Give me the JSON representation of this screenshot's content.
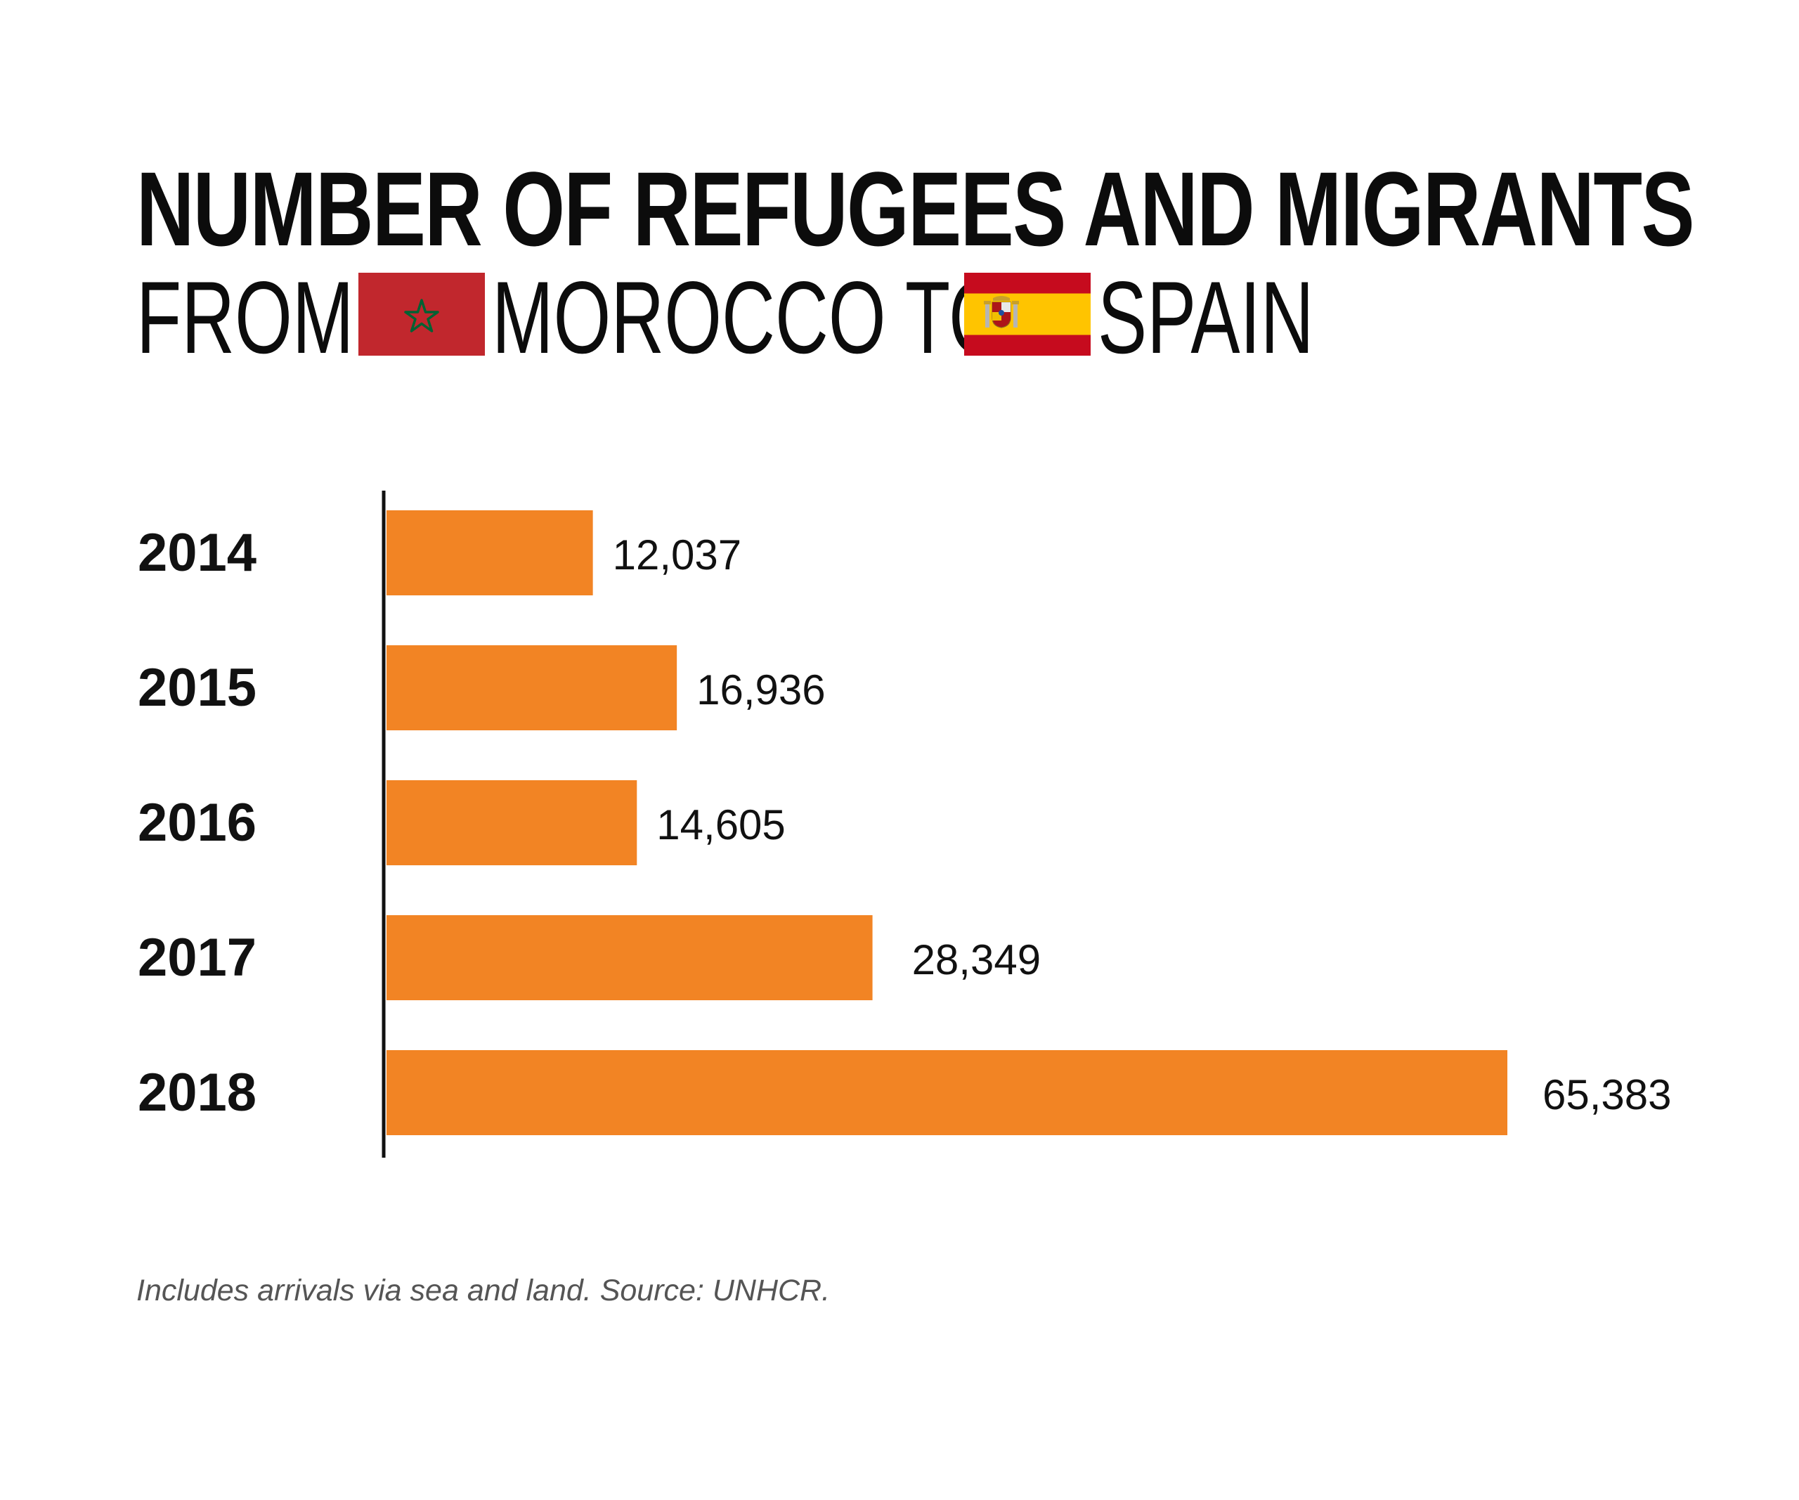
{
  "header": {
    "title_line1": "NUMBER OF REFUGEES AND MIGRANTS",
    "word_from": "FROM",
    "word_origin": "MOROCCO TO",
    "word_destination": "SPAIN"
  },
  "flags": {
    "origin": {
      "icon": "morocco-flag-icon",
      "red": "#c1272d",
      "green": "#006233"
    },
    "destination": {
      "icon": "spain-flag-icon",
      "red": "#c60b1e",
      "yellow": "#ffc400"
    }
  },
  "colors": {
    "bar": "#f28424",
    "axis": "#111111",
    "category_label": "#111111",
    "value_label": "#111111"
  },
  "chart_data": {
    "type": "bar",
    "orientation": "horizontal",
    "categories": [
      "2014",
      "2015",
      "2016",
      "2017",
      "2018"
    ],
    "values": [
      12037,
      16936,
      14605,
      28349,
      65383
    ],
    "value_labels": [
      "12,037",
      "16,936",
      "14,605",
      "28,349",
      "65,383"
    ],
    "xlim": [
      0,
      65383
    ],
    "grid": false,
    "legend": "none"
  },
  "footnote": "Includes arrivals via sea and land. Source: UNHCR."
}
